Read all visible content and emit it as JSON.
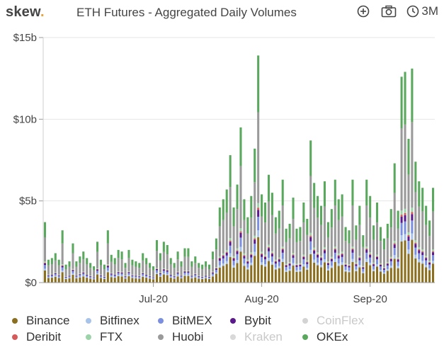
{
  "header": {
    "logo": "skew",
    "logo_dot": ".",
    "title": "ETH Futures - Aggregated Daily Volumes",
    "range_label": "3M",
    "icons": [
      "add-circle-icon",
      "camera-icon",
      "clock-icon"
    ]
  },
  "legend": {
    "items": [
      {
        "label": "Binance",
        "color": "#8b6f1e",
        "active": true
      },
      {
        "label": "Bitfinex",
        "color": "#a8c3ea",
        "active": true
      },
      {
        "label": "BitMEX",
        "color": "#7b8fe0",
        "active": true
      },
      {
        "label": "Bybit",
        "color": "#5b1a8c",
        "active": true
      },
      {
        "label": "CoinFlex",
        "color": "#d3d3d3",
        "active": false
      },
      {
        "label": "Deribit",
        "color": "#d65a5a",
        "active": true
      },
      {
        "label": "FTX",
        "color": "#9dd3a8",
        "active": true
      },
      {
        "label": "Huobi",
        "color": "#9a9a9a",
        "active": true
      },
      {
        "label": "Kraken",
        "color": "#d9d9d9",
        "active": false
      },
      {
        "label": "OKEx",
        "color": "#5aa85e",
        "active": true
      }
    ]
  },
  "chart_data": {
    "type": "bar",
    "stacked": true,
    "y_unit": "$b",
    "ylim": [
      0,
      15
    ],
    "yticks": [
      "$0",
      "$5b",
      "$10b",
      "$15b"
    ],
    "xticks": [
      "Jul-20",
      "Aug-20",
      "Sep-20"
    ],
    "grid": true,
    "legend_position": "bottom",
    "series_order": [
      "Binance",
      "Bitfinex",
      "BitMEX",
      "Bybit",
      "Deribit",
      "FTX",
      "Huobi",
      "OKEx"
    ],
    "series_colors": [
      "#8b6f1e",
      "#a8c3ea",
      "#7b8fe0",
      "#5b1a8c",
      "#d65a5a",
      "#9dd3a8",
      "#9a9a9a",
      "#5aa85e"
    ],
    "series_shares": [
      0.2,
      0.03,
      0.06,
      0.03,
      0.01,
      0.02,
      0.4,
      0.25
    ],
    "totals": [
      3.7,
      1.4,
      1.5,
      1.8,
      1.4,
      3.2,
      1.1,
      1.3,
      2.4,
      1.3,
      1.6,
      1.9,
      1.5,
      1.2,
      1.0,
      2.5,
      1.4,
      1.1,
      3.2,
      1.7,
      1.5,
      2.0,
      1.9,
      1.2,
      2.0,
      1.4,
      1.3,
      1.2,
      1.8,
      1.5,
      1.2,
      1.0,
      2.6,
      1.8,
      2.5,
      2.3,
      1.5,
      1.2,
      1.9,
      1.3,
      2.1,
      2.1,
      1.3,
      1.6,
      1.2,
      1.1,
      1.3,
      1.1,
      1.9,
      2.7,
      4.6,
      5.1,
      5.7,
      7.8,
      4.6,
      6.0,
      9.5,
      5.1,
      4.0,
      5.3,
      8.2,
      13.9,
      5.4,
      4.9,
      6.6,
      5.5,
      4.0,
      4.4,
      6.3,
      3.3,
      3.6,
      5.2,
      3.3,
      3.4,
      4.9,
      3.9,
      8.7,
      6.1,
      5.3,
      4.7,
      6.2,
      3.7,
      4.5,
      6.3,
      5.1,
      5.4,
      3.4,
      3.2,
      6.3,
      3.5,
      4.7,
      2.9,
      6.3,
      5.3,
      3.5,
      4.9,
      3.4,
      2.7,
      3.6,
      4.5,
      7.3,
      4.4,
      12.6,
      12.9,
      8.8,
      13.1,
      7.4,
      6.2,
      5.8,
      4.7,
      3.8,
      5.8
    ]
  }
}
